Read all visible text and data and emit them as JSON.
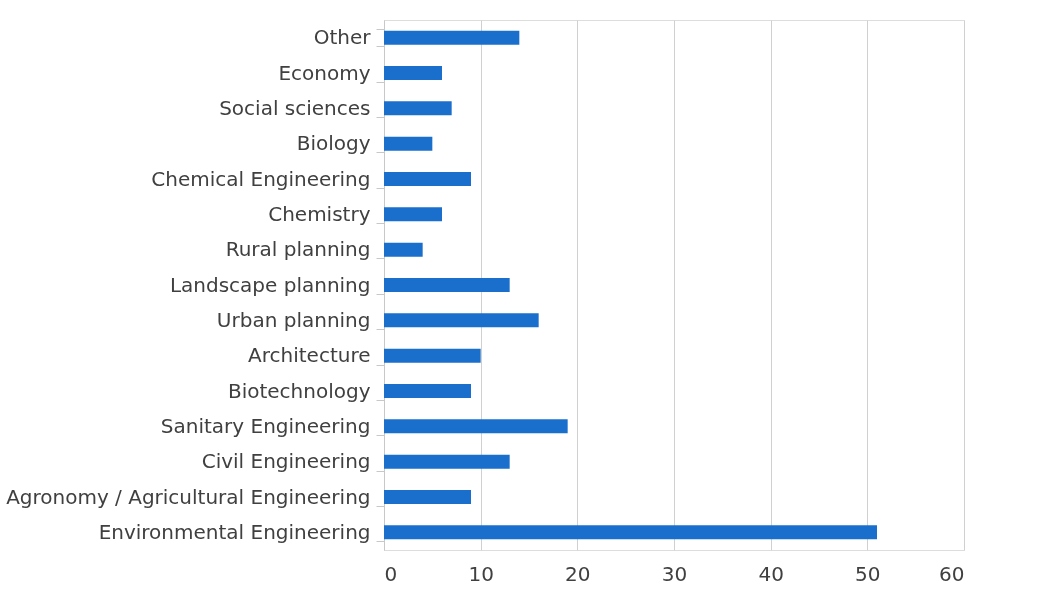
{
  "chart_data": {
    "type": "bar",
    "orientation": "horizontal",
    "categories": [
      "Other",
      "Economy",
      "Social sciences",
      "Biology",
      "Chemical Engineering",
      "Chemistry",
      "Rural planning",
      "Landscape planning",
      "Urban planning",
      "Architecture",
      "Biotechnology",
      "Sanitary Engineering",
      "Civil Engineering",
      "Agronomy / Agricultural Engineering",
      "Environmental Engineering"
    ],
    "values": [
      14,
      6,
      7,
      5,
      9,
      6,
      4,
      13,
      16,
      10,
      9,
      19,
      13,
      9,
      51
    ],
    "color": "#1a6fcc",
    "xlim": [
      0,
      60
    ],
    "xticks": [
      0,
      10,
      20,
      30,
      40,
      50,
      60
    ],
    "grid": "x"
  }
}
